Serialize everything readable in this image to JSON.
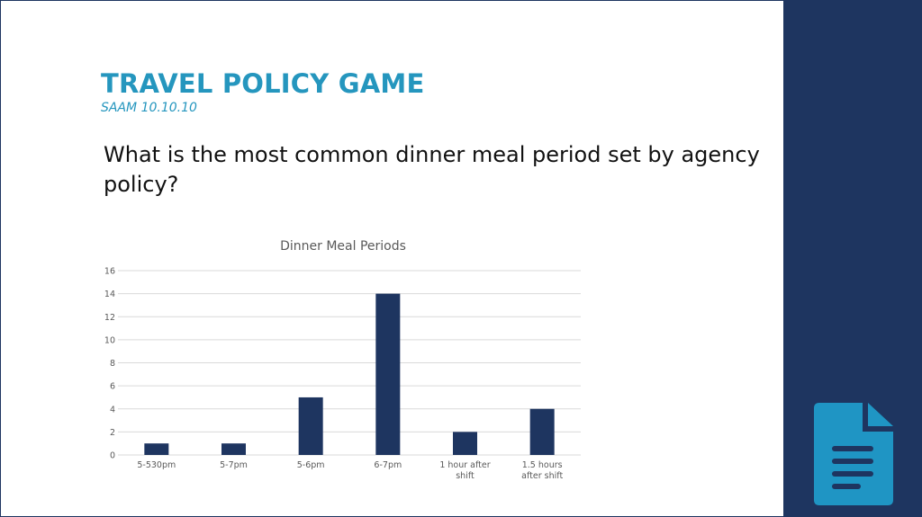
{
  "slide": {
    "title": "TRAVEL POLICY GAME",
    "subtitle": "SAAM 10.10.10",
    "question": "What is the most common dinner meal period set by agency policy?",
    "icon": "document-icon"
  },
  "colors": {
    "title": "#2596be",
    "side_panel": "#1e3560",
    "bar": "#1e3560",
    "icon": "#1f95c4",
    "gridline": "#d9d9d9",
    "axis_text": "#595959"
  },
  "chart_data": {
    "type": "bar",
    "title": "Dinner Meal Periods",
    "categories": [
      "5-530pm",
      "5-7pm",
      "5-6pm",
      "6-7pm",
      "1 hour after shift",
      "1.5 hours after shift"
    ],
    "values": [
      1,
      1,
      5,
      14,
      2,
      4
    ],
    "ylim": [
      0,
      16
    ],
    "yticks": [
      0,
      2,
      4,
      6,
      8,
      10,
      12,
      14,
      16
    ],
    "xlabel": "",
    "ylabel": "",
    "grid": true,
    "legend": "none"
  }
}
